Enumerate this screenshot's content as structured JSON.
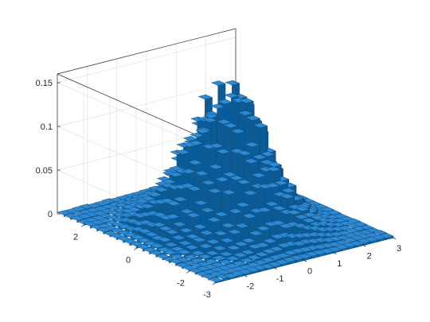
{
  "chart_data": {
    "type": "bar3",
    "title": "",
    "xlabel": "",
    "ylabel": "",
    "zlabel": "",
    "x_range": [
      -3,
      3
    ],
    "y_range": [
      -3,
      3
    ],
    "z_range": [
      0,
      0.16
    ],
    "x_ticks": [
      {
        "value": -2,
        "label": "-2"
      },
      {
        "value": -1,
        "label": "-1"
      },
      {
        "value": 0,
        "label": "0"
      },
      {
        "value": 1,
        "label": "1"
      },
      {
        "value": 2,
        "label": "2"
      },
      {
        "value": 3,
        "label": "3"
      }
    ],
    "y_ticks": [
      {
        "value": -3,
        "label": "-3"
      },
      {
        "value": -2,
        "label": "-2"
      },
      {
        "value": 0,
        "label": "0"
      },
      {
        "value": 2,
        "label": "2"
      }
    ],
    "z_ticks": [
      {
        "value": 0,
        "label": "0"
      },
      {
        "value": 0.05,
        "label": "0.05"
      },
      {
        "value": 0.1,
        "label": "0.1"
      },
      {
        "value": 0.15,
        "label": "0.15"
      }
    ],
    "grid": true,
    "bin_width": 0.25,
    "bar_color": "#0072bd",
    "edge_color": "#1b3d63",
    "distribution": "bivariate normal histogram (mean 0, unit variance)",
    "peak_value": 0.153
  }
}
